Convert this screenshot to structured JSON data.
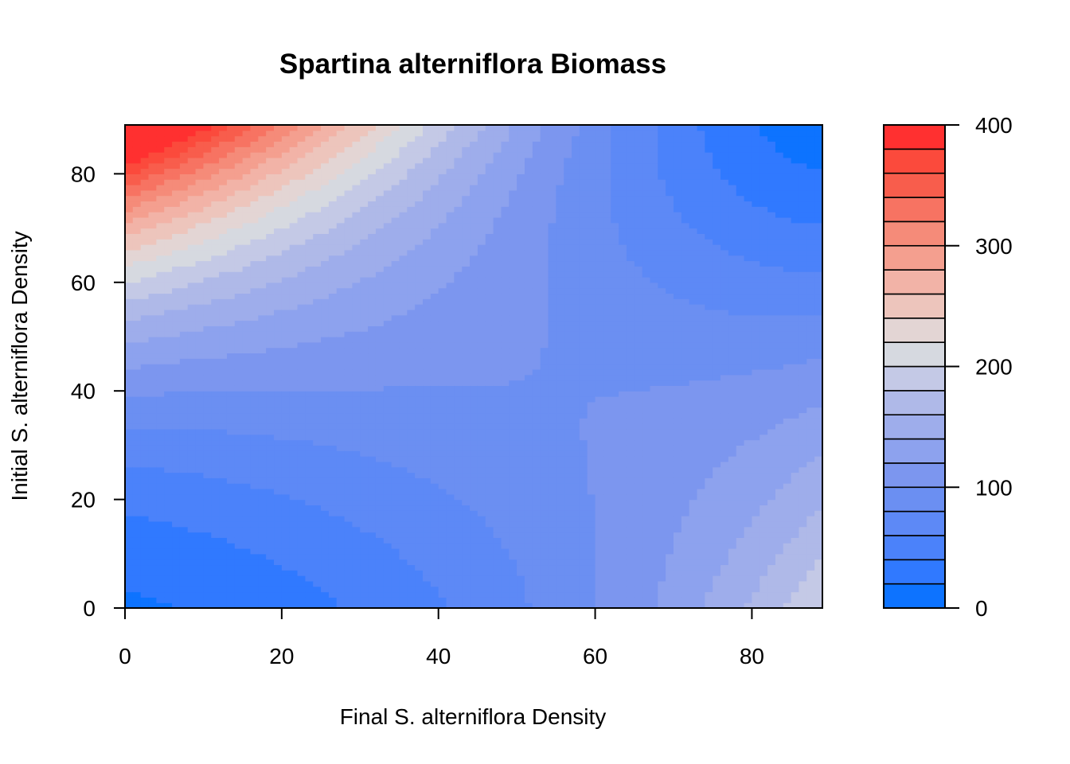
{
  "chart_data": {
    "type": "heatmap",
    "title": "Spartina alterniflora Biomass",
    "xlabel": "Final S. alterniflora Density",
    "ylabel": "Initial S. alterniflora Density",
    "xlim": [
      0,
      89
    ],
    "ylim": [
      0,
      89
    ],
    "x_ticks": [
      0,
      20,
      40,
      60,
      80
    ],
    "y_ticks": [
      0,
      20,
      40,
      60,
      80
    ],
    "x_tick_labels": [
      "0",
      "20",
      "40",
      "60",
      "80"
    ],
    "y_tick_labels": [
      "0",
      "20",
      "40",
      "60",
      "80"
    ],
    "colorbar": {
      "range": [
        0,
        400
      ],
      "step": 20,
      "ticks": [
        0,
        100,
        200,
        300,
        400
      ],
      "tick_labels": [
        "0",
        "100",
        "200",
        "300",
        "400"
      ],
      "colors": [
        "#0d73ff",
        "#3079ff",
        "#4b82fa",
        "#5d89f6",
        "#6b8ff2",
        "#7c96ef",
        "#8da2ee",
        "#9eadeb",
        "#afb9e8",
        "#c4c9e6",
        "#d6d9e0",
        "#e3d5d4",
        "#edc5bc",
        "#f2b3a7",
        "#f49f8f",
        "#f58b79",
        "#f77362",
        "#f85d4c",
        "#fb4a3c",
        "#ff3030"
      ]
    },
    "surface_samples": [
      {
        "x": 0,
        "y": 0,
        "z": 5
      },
      {
        "x": 40,
        "y": 0,
        "z": 35
      },
      {
        "x": 89,
        "y": 0,
        "z": 140
      },
      {
        "x": 0,
        "y": 89,
        "z": 390
      },
      {
        "x": 89,
        "y": 89,
        "z": 10
      },
      {
        "x": 40,
        "y": 40,
        "z": 40
      }
    ]
  }
}
